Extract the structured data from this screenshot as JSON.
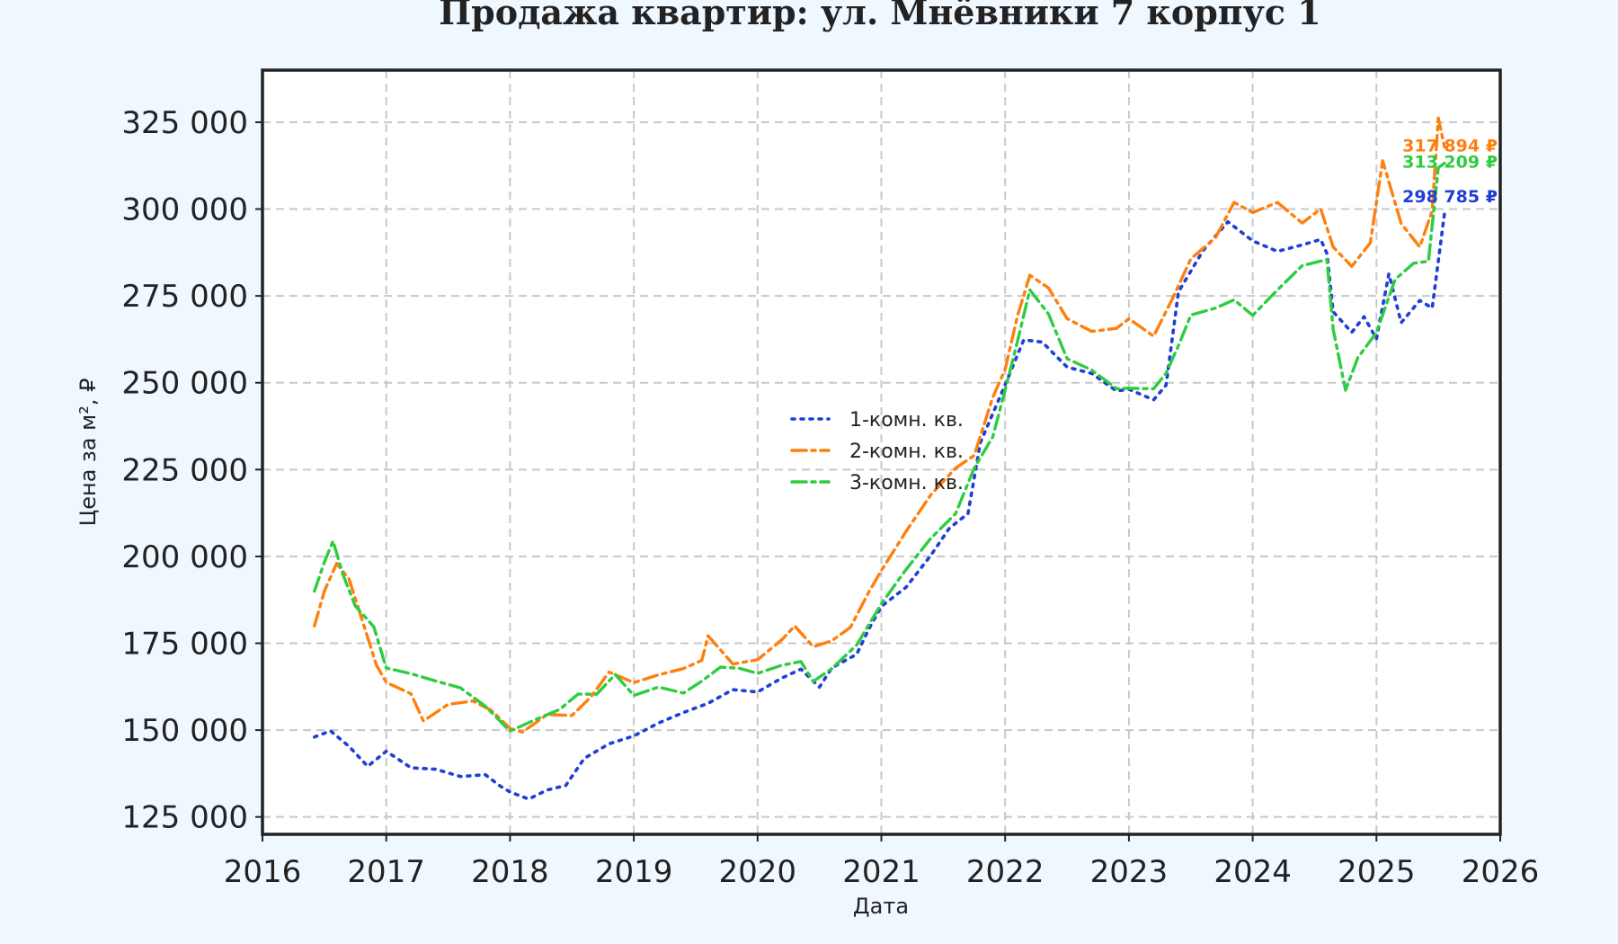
{
  "chart_data": {
    "type": "line",
    "title": "Продажа квартир: ул. Мнёвники 7 корпус 1",
    "xlabel": "Дата",
    "ylabel": "Цена за м², ₽",
    "xlim": [
      2016,
      2026
    ],
    "ylim": [
      120000,
      340000
    ],
    "x_ticks": [
      "2016",
      "2017",
      "2018",
      "2019",
      "2020",
      "2021",
      "2022",
      "2023",
      "2024",
      "2025",
      "2026"
    ],
    "y_ticks": [
      "125 000",
      "150 000",
      "175 000",
      "200 000",
      "225 000",
      "250 000",
      "275 000",
      "300 000",
      "325 000"
    ],
    "grid": true,
    "legend_position": "center",
    "series": [
      {
        "name": "1-комн. кв.",
        "color": "#1f3fd6",
        "style": "dotted",
        "end_label": "298 785 ₽",
        "points": [
          [
            2016.42,
            148000
          ],
          [
            2016.55,
            149000
          ],
          [
            2016.7,
            145000
          ],
          [
            2016.85,
            139000
          ],
          [
            2017.0,
            144000
          ],
          [
            2017.2,
            140000
          ],
          [
            2017.4,
            139000
          ],
          [
            2017.6,
            137000
          ],
          [
            2017.8,
            137000
          ],
          [
            2017.92,
            133000
          ],
          [
            2018.0,
            132000
          ],
          [
            2018.15,
            130000
          ],
          [
            2018.3,
            133000
          ],
          [
            2018.45,
            135000
          ],
          [
            2018.6,
            142000
          ],
          [
            2018.8,
            146000
          ],
          [
            2019.0,
            148000
          ],
          [
            2019.2,
            151000
          ],
          [
            2019.4,
            155000
          ],
          [
            2019.6,
            158000
          ],
          [
            2019.8,
            162000
          ],
          [
            2020.0,
            162000
          ],
          [
            2020.2,
            165000
          ],
          [
            2020.35,
            167000
          ],
          [
            2020.5,
            162000
          ],
          [
            2020.6,
            167000
          ],
          [
            2020.8,
            172000
          ],
          [
            2020.9,
            180000
          ],
          [
            2021.0,
            186000
          ],
          [
            2021.2,
            192000
          ],
          [
            2021.4,
            200000
          ],
          [
            2021.55,
            207000
          ],
          [
            2021.7,
            212000
          ],
          [
            2021.8,
            232000
          ],
          [
            2022.0,
            250000
          ],
          [
            2022.15,
            264000
          ],
          [
            2022.3,
            262000
          ],
          [
            2022.5,
            255000
          ],
          [
            2022.7,
            252000
          ],
          [
            2022.9,
            246000
          ],
          [
            2023.0,
            248000
          ],
          [
            2023.2,
            245000
          ],
          [
            2023.3,
            250000
          ],
          [
            2023.4,
            278000
          ],
          [
            2023.6,
            288000
          ],
          [
            2023.8,
            296000
          ],
          [
            2024.0,
            290000
          ],
          [
            2024.2,
            286000
          ],
          [
            2024.4,
            290000
          ],
          [
            2024.55,
            292000
          ],
          [
            2024.6,
            288000
          ],
          [
            2024.65,
            272000
          ],
          [
            2024.8,
            264000
          ],
          [
            2024.9,
            268000
          ],
          [
            2025.0,
            262000
          ],
          [
            2025.1,
            280000
          ],
          [
            2025.2,
            268000
          ],
          [
            2025.35,
            275000
          ],
          [
            2025.45,
            272000
          ],
          [
            2025.55,
            298785
          ]
        ]
      },
      {
        "name": "2-комн. кв.",
        "color": "#ff7f0e",
        "style": "dashdot",
        "end_label": "317 894 ₽",
        "points": [
          [
            2016.42,
            180000
          ],
          [
            2016.5,
            191000
          ],
          [
            2016.6,
            199000
          ],
          [
            2016.7,
            193000
          ],
          [
            2016.8,
            182000
          ],
          [
            2016.92,
            168000
          ],
          [
            2017.0,
            163000
          ],
          [
            2017.2,
            161000
          ],
          [
            2017.3,
            153000
          ],
          [
            2017.5,
            158000
          ],
          [
            2017.7,
            159000
          ],
          [
            2017.85,
            155000
          ],
          [
            2018.0,
            150000
          ],
          [
            2018.1,
            149000
          ],
          [
            2018.3,
            154000
          ],
          [
            2018.5,
            155000
          ],
          [
            2018.65,
            160000
          ],
          [
            2018.8,
            167000
          ],
          [
            2019.0,
            164000
          ],
          [
            2019.2,
            165000
          ],
          [
            2019.4,
            167000
          ],
          [
            2019.55,
            170000
          ],
          [
            2019.6,
            177000
          ],
          [
            2019.8,
            170000
          ],
          [
            2020.0,
            171000
          ],
          [
            2020.2,
            176000
          ],
          [
            2020.3,
            180000
          ],
          [
            2020.45,
            173000
          ],
          [
            2020.6,
            175000
          ],
          [
            2020.75,
            180000
          ],
          [
            2020.9,
            190000
          ],
          [
            2021.0,
            197000
          ],
          [
            2021.2,
            208000
          ],
          [
            2021.4,
            217000
          ],
          [
            2021.6,
            225000
          ],
          [
            2021.75,
            228000
          ],
          [
            2021.9,
            245000
          ],
          [
            2022.0,
            255000
          ],
          [
            2022.1,
            270000
          ],
          [
            2022.2,
            282000
          ],
          [
            2022.35,
            278000
          ],
          [
            2022.5,
            267000
          ],
          [
            2022.7,
            264000
          ],
          [
            2022.9,
            265000
          ],
          [
            2023.0,
            268000
          ],
          [
            2023.2,
            265000
          ],
          [
            2023.35,
            275000
          ],
          [
            2023.5,
            286000
          ],
          [
            2023.7,
            292000
          ],
          [
            2023.85,
            300000
          ],
          [
            2024.0,
            298000
          ],
          [
            2024.2,
            302000
          ],
          [
            2024.4,
            296000
          ],
          [
            2024.55,
            302000
          ],
          [
            2024.65,
            290000
          ],
          [
            2024.8,
            283000
          ],
          [
            2024.95,
            290000
          ],
          [
            2025.05,
            312000
          ],
          [
            2025.2,
            295000
          ],
          [
            2025.35,
            290000
          ],
          [
            2025.45,
            300000
          ],
          [
            2025.5,
            328000
          ],
          [
            2025.55,
            317894
          ]
        ]
      },
      {
        "name": "3-комн. кв.",
        "color": "#2ecc40",
        "style": "dashdot",
        "end_label": "313 209 ₽",
        "points": [
          [
            2016.42,
            190000
          ],
          [
            2016.5,
            198000
          ],
          [
            2016.57,
            204000
          ],
          [
            2016.65,
            195000
          ],
          [
            2016.75,
            187000
          ],
          [
            2016.9,
            180000
          ],
          [
            2017.0,
            168000
          ],
          [
            2017.2,
            166000
          ],
          [
            2017.4,
            163000
          ],
          [
            2017.6,
            162000
          ],
          [
            2017.8,
            157000
          ],
          [
            2018.0,
            150000
          ],
          [
            2018.2,
            154000
          ],
          [
            2018.4,
            156000
          ],
          [
            2018.55,
            160000
          ],
          [
            2018.7,
            160000
          ],
          [
            2018.85,
            165000
          ],
          [
            2019.0,
            160000
          ],
          [
            2019.2,
            163000
          ],
          [
            2019.4,
            161000
          ],
          [
            2019.55,
            165000
          ],
          [
            2019.7,
            168000
          ],
          [
            2019.85,
            167000
          ],
          [
            2020.0,
            166000
          ],
          [
            2020.2,
            168000
          ],
          [
            2020.35,
            170000
          ],
          [
            2020.45,
            165000
          ],
          [
            2020.6,
            168000
          ],
          [
            2020.8,
            175000
          ],
          [
            2021.0,
            186000
          ],
          [
            2021.2,
            195000
          ],
          [
            2021.4,
            205000
          ],
          [
            2021.6,
            212000
          ],
          [
            2021.75,
            226000
          ],
          [
            2021.9,
            236000
          ],
          [
            2022.0,
            248000
          ],
          [
            2022.1,
            262000
          ],
          [
            2022.2,
            276000
          ],
          [
            2022.35,
            268000
          ],
          [
            2022.5,
            257000
          ],
          [
            2022.7,
            254000
          ],
          [
            2022.9,
            249000
          ],
          [
            2023.0,
            250000
          ],
          [
            2023.2,
            248000
          ],
          [
            2023.3,
            252000
          ],
          [
            2023.4,
            260000
          ],
          [
            2023.5,
            268000
          ],
          [
            2023.7,
            272000
          ],
          [
            2023.85,
            275000
          ],
          [
            2024.0,
            270000
          ],
          [
            2024.2,
            278000
          ],
          [
            2024.4,
            283000
          ],
          [
            2024.6,
            284000
          ],
          [
            2024.65,
            265000
          ],
          [
            2024.75,
            247000
          ],
          [
            2024.85,
            258000
          ],
          [
            2025.0,
            266000
          ],
          [
            2025.15,
            280000
          ],
          [
            2025.3,
            285000
          ],
          [
            2025.42,
            284000
          ],
          [
            2025.5,
            310000
          ],
          [
            2025.55,
            313209
          ]
        ]
      }
    ]
  }
}
